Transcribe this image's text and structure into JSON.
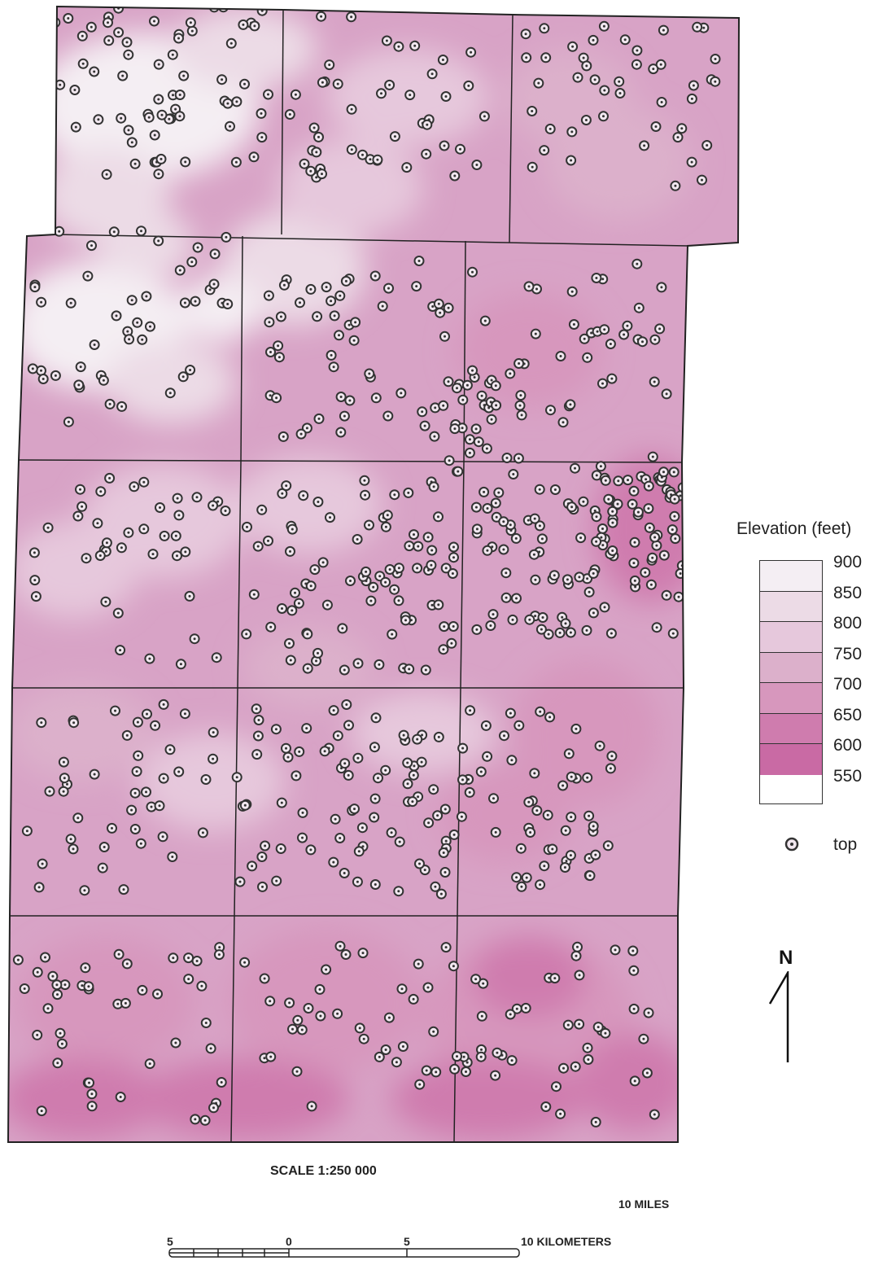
{
  "legend": {
    "title": "Elevation (feet)",
    "labels": [
      "900",
      "850",
      "800",
      "750",
      "700",
      "650",
      "600",
      "550"
    ],
    "classes": [
      {
        "range": "850-900",
        "color": "#f4eef3"
      },
      {
        "range": "800-850",
        "color": "#ecdbe6"
      },
      {
        "range": "750-800",
        "color": "#e6c8dc"
      },
      {
        "range": "700-750",
        "color": "#dcb0cb"
      },
      {
        "range": "650-700",
        "color": "#d797bd"
      },
      {
        "range": "600-650",
        "color": "#cf7cae"
      },
      {
        "range": "550-600",
        "color": "#c96aa4"
      }
    ],
    "point_symbol": "top-marker-icon",
    "point_label": "top"
  },
  "north_arrow": {
    "label": "N"
  },
  "scale": {
    "text": "SCALE 1:250 000",
    "miles_label": "10 MILES",
    "km_label": "10 KILOMETERS",
    "km_ticks": [
      "5",
      "0",
      "5"
    ]
  },
  "colors": {
    "grid_line": "#222222",
    "well_marker_fill": "#f2e8f0",
    "well_marker_stroke": "#333333"
  }
}
